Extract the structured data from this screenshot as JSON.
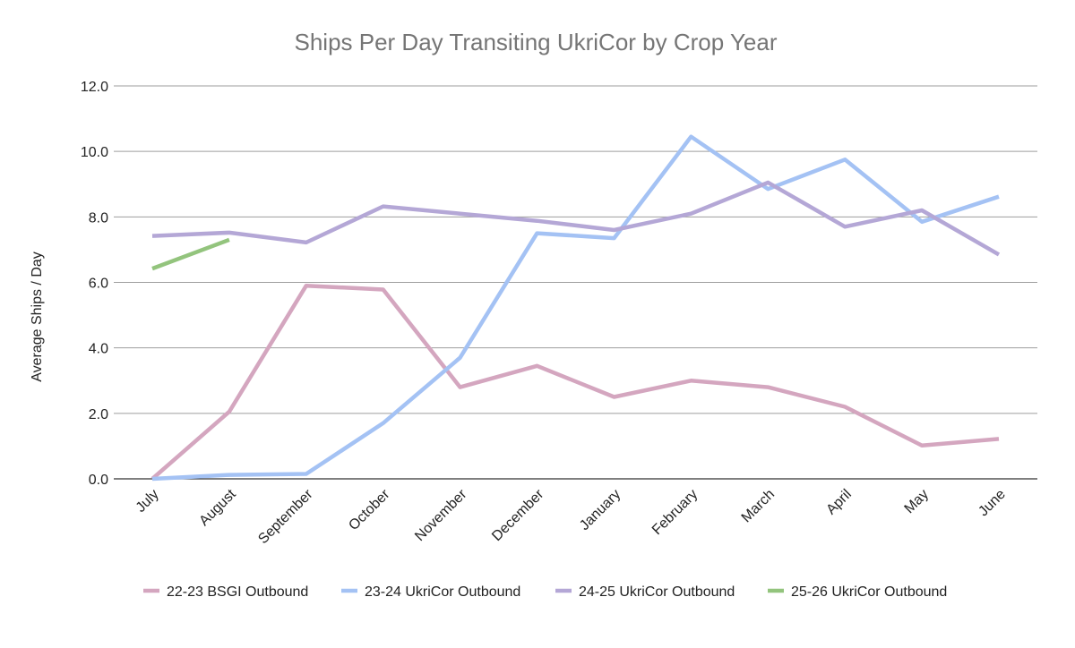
{
  "chart_data": {
    "type": "line",
    "title": "Ships Per Day Transiting UkriCor by Crop Year",
    "xlabel": "",
    "ylabel": "Average Ships / Day",
    "ylim": [
      0,
      12
    ],
    "yticks": [
      "0.0",
      "2.0",
      "4.0",
      "6.0",
      "8.0",
      "10.0",
      "12.0"
    ],
    "ytick_values": [
      0,
      2,
      4,
      6,
      8,
      10,
      12
    ],
    "categories": [
      "July",
      "August",
      "September",
      "October",
      "November",
      "December",
      "January",
      "February",
      "March",
      "April",
      "May",
      "June"
    ],
    "grid": true,
    "legend_position": "bottom",
    "series": [
      {
        "name": "22-23 BSGI Outbound",
        "color": "#d4a6bf",
        "values": [
          0.0,
          2.05,
          5.9,
          5.78,
          2.8,
          3.45,
          2.5,
          3.0,
          2.8,
          2.2,
          1.02,
          1.22
        ]
      },
      {
        "name": "23-24 UkriCor Outbound",
        "color": "#a4c2f4",
        "values": [
          0.0,
          0.12,
          0.15,
          1.7,
          3.7,
          7.5,
          7.35,
          10.45,
          8.85,
          9.75,
          7.85,
          8.62
        ]
      },
      {
        "name": "24-25 UkriCor Outbound",
        "color": "#b4a7d6",
        "values": [
          7.42,
          7.52,
          7.22,
          8.32,
          8.1,
          7.88,
          7.6,
          8.1,
          9.05,
          7.7,
          8.2,
          6.85
        ]
      },
      {
        "name": "25-26 UkriCor Outbound",
        "color": "#93c47d",
        "values": [
          6.42,
          7.3,
          null,
          null,
          null,
          null,
          null,
          null,
          null,
          null,
          null,
          null
        ]
      }
    ]
  }
}
